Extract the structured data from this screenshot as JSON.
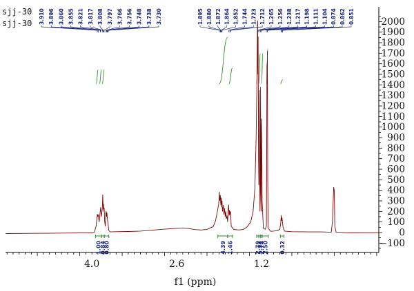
{
  "sample_labels": [
    "sjj-30",
    "sjj-30"
  ],
  "chart_data": {
    "type": "line",
    "title": "",
    "xlabel": "f1 (ppm)",
    "ylabel": "",
    "x_reversed": true,
    "xlim": [
      5.425,
      -0.735
    ],
    "ylim": [
      -200,
      2100
    ],
    "x_ticks": [
      {
        "value": 4.0,
        "label": "4.0"
      },
      {
        "value": 2.6,
        "label": "2.6"
      },
      {
        "value": 1.2,
        "label": "1.2"
      }
    ],
    "y_ticks": [
      -100,
      0,
      100,
      200,
      300,
      400,
      500,
      600,
      700,
      800,
      900,
      1000,
      1100,
      1200,
      1300,
      1400,
      1500,
      1600,
      1700,
      1800,
      1900,
      2000
    ],
    "peak_groups": [
      {
        "shifts": [
          "3.910",
          "3.896",
          "3.860",
          "3.855",
          "3.821",
          "3.817",
          "3.808",
          "3.797",
          "3.766",
          "3.756",
          "3.748",
          "3.738",
          "3.730"
        ]
      },
      {
        "shifts": [
          "1.895",
          "1.880",
          "1.872",
          "1.864",
          "1.852",
          "1.744",
          "1.723",
          "1.712",
          "1.265",
          "1.256",
          "1.238",
          "1.217",
          "1.198",
          "1.111",
          "1.104",
          "0.874",
          "0.862",
          "0.851"
        ]
      }
    ],
    "integrals": [
      {
        "from": 3.94,
        "to": 3.845,
        "value": "1.00"
      },
      {
        "from": 3.845,
        "to": 3.795,
        "value": "0.84"
      },
      {
        "from": 3.795,
        "to": 3.72,
        "value": "0.80"
      },
      {
        "from": 1.92,
        "to": 1.76,
        "value": "4.39"
      },
      {
        "from": 1.76,
        "to": 1.68,
        "value": "1.46"
      },
      {
        "from": 1.28,
        "to": 1.245,
        "value": "2.79"
      },
      {
        "from": 1.245,
        "to": 1.215,
        "value": "1.24"
      },
      {
        "from": 1.215,
        "to": 1.19,
        "value": "2.74"
      },
      {
        "from": 1.19,
        "to": 1.09,
        "value": "2.50"
      },
      {
        "from": 0.89,
        "to": 0.83,
        "value": "0.32"
      }
    ],
    "series": [
      {
        "values": [
          [
            5.42,
            -10
          ],
          [
            5.0,
            -8
          ],
          [
            4.6,
            -6
          ],
          [
            4.2,
            -4
          ],
          [
            4.0,
            -4
          ],
          [
            3.96,
            2
          ],
          [
            3.93,
            60
          ],
          [
            3.91,
            175
          ],
          [
            3.905,
            150
          ],
          [
            3.896,
            170
          ],
          [
            3.88,
            100
          ],
          [
            3.86,
            210
          ],
          [
            3.855,
            240
          ],
          [
            3.845,
            150
          ],
          [
            3.835,
            185
          ],
          [
            3.828,
            235
          ],
          [
            3.821,
            360
          ],
          [
            3.817,
            300
          ],
          [
            3.812,
            220
          ],
          [
            3.808,
            270
          ],
          [
            3.8,
            200
          ],
          [
            3.797,
            235
          ],
          [
            3.79,
            110
          ],
          [
            3.78,
            60
          ],
          [
            3.77,
            170
          ],
          [
            3.766,
            205
          ],
          [
            3.758,
            150
          ],
          [
            3.752,
            190
          ],
          [
            3.742,
            120
          ],
          [
            3.735,
            90
          ],
          [
            3.72,
            20
          ],
          [
            3.7,
            6
          ],
          [
            3.6,
            8
          ],
          [
            3.4,
            10
          ],
          [
            3.2,
            14
          ],
          [
            3.0,
            22
          ],
          [
            2.8,
            32
          ],
          [
            2.6,
            40
          ],
          [
            2.5,
            42
          ],
          [
            2.4,
            38
          ],
          [
            2.3,
            28
          ],
          [
            2.2,
            24
          ],
          [
            2.1,
            30
          ],
          [
            2.0,
            55
          ],
          [
            1.96,
            110
          ],
          [
            1.93,
            195
          ],
          [
            1.91,
            260
          ],
          [
            1.9,
            330
          ],
          [
            1.895,
            385
          ],
          [
            1.89,
            300
          ],
          [
            1.88,
            355
          ],
          [
            1.872,
            260
          ],
          [
            1.864,
            330
          ],
          [
            1.858,
            240
          ],
          [
            1.852,
            300
          ],
          [
            1.845,
            200
          ],
          [
            1.83,
            260
          ],
          [
            1.82,
            170
          ],
          [
            1.81,
            230
          ],
          [
            1.8,
            150
          ],
          [
            1.79,
            200
          ],
          [
            1.78,
            130
          ],
          [
            1.77,
            160
          ],
          [
            1.76,
            100
          ],
          [
            1.752,
            200
          ],
          [
            1.744,
            265
          ],
          [
            1.735,
            160
          ],
          [
            1.728,
            210
          ],
          [
            1.723,
            170
          ],
          [
            1.712,
            200
          ],
          [
            1.7,
            60
          ],
          [
            1.66,
            30
          ],
          [
            1.58,
            24
          ],
          [
            1.5,
            30
          ],
          [
            1.44,
            52
          ],
          [
            1.38,
            100
          ],
          [
            1.34,
            200
          ],
          [
            1.31,
            420
          ],
          [
            1.29,
            900
          ],
          [
            1.275,
            1500
          ],
          [
            1.268,
            1980
          ],
          [
            1.265,
            2010
          ],
          [
            1.26,
            1500
          ],
          [
            1.256,
            1860
          ],
          [
            1.25,
            700
          ],
          [
            1.245,
            450
          ],
          [
            1.238,
            1350
          ],
          [
            1.232,
            700
          ],
          [
            1.226,
            200
          ],
          [
            1.22,
            400
          ],
          [
            1.217,
            1380
          ],
          [
            1.212,
            500
          ],
          [
            1.206,
            200
          ],
          [
            1.202,
            1000
          ],
          [
            1.198,
            1080
          ],
          [
            1.19,
            300
          ],
          [
            1.17,
            40
          ],
          [
            1.14,
            30
          ],
          [
            1.12,
            60
          ],
          [
            1.111,
            1600
          ],
          [
            1.107,
            1480
          ],
          [
            1.104,
            1720
          ],
          [
            1.098,
            500
          ],
          [
            1.09,
            40
          ],
          [
            1.05,
            12
          ],
          [
            1.0,
            14
          ],
          [
            0.94,
            18
          ],
          [
            0.9,
            30
          ],
          [
            0.885,
            80
          ],
          [
            0.875,
            165
          ],
          [
            0.868,
            110
          ],
          [
            0.862,
            140
          ],
          [
            0.855,
            100
          ],
          [
            0.845,
            50
          ],
          [
            0.82,
            14
          ],
          [
            0.7,
            8
          ],
          [
            0.4,
            6
          ],
          [
            0.2,
            6
          ],
          [
            0.1,
            4
          ],
          [
            0.05,
            4
          ],
          [
            0.03,
            100
          ],
          [
            0.01,
            430
          ],
          [
            0.0,
            400
          ],
          [
            -0.01,
            60
          ],
          [
            -0.03,
            3
          ],
          [
            -0.2,
            -2
          ],
          [
            -0.5,
            -4
          ],
          [
            -0.73,
            -4
          ]
        ]
      }
    ],
    "integral_curves": [
      {
        "from": 3.93,
        "to": 3.895,
        "y_start": 1410,
        "y_end": 1545
      },
      {
        "from": 3.875,
        "to": 3.84,
        "y_start": 1410,
        "y_end": 1545
      },
      {
        "from": 3.83,
        "to": 3.795,
        "y_start": 1410,
        "y_end": 1545
      },
      {
        "from": 1.9,
        "to": 1.76,
        "y_start": 1410,
        "y_end": 1850
      },
      {
        "from": 1.74,
        "to": 1.68,
        "y_start": 1410,
        "y_end": 1560
      },
      {
        "from": 1.285,
        "to": 1.255,
        "y_start": 1410,
        "y_end": 1700
      },
      {
        "from": 1.245,
        "to": 1.22,
        "y_start": 1410,
        "y_end": 1700
      },
      {
        "from": 1.2,
        "to": 1.18,
        "y_start": 1410,
        "y_end": 1700
      },
      {
        "from": 1.12,
        "to": 1.095,
        "y_start": 1410,
        "y_end": 1740
      },
      {
        "from": 0.89,
        "to": 0.85,
        "y_start": 1410,
        "y_end": 1450
      }
    ],
    "colors": {
      "spectrum": "#7a0a0a",
      "integral_curve": "#2e8b2e",
      "peak_labels": "#1a237e",
      "integral_values": "#1a237e",
      "integral_brackets": "#2e8b2e",
      "axes": "#000000"
    }
  }
}
